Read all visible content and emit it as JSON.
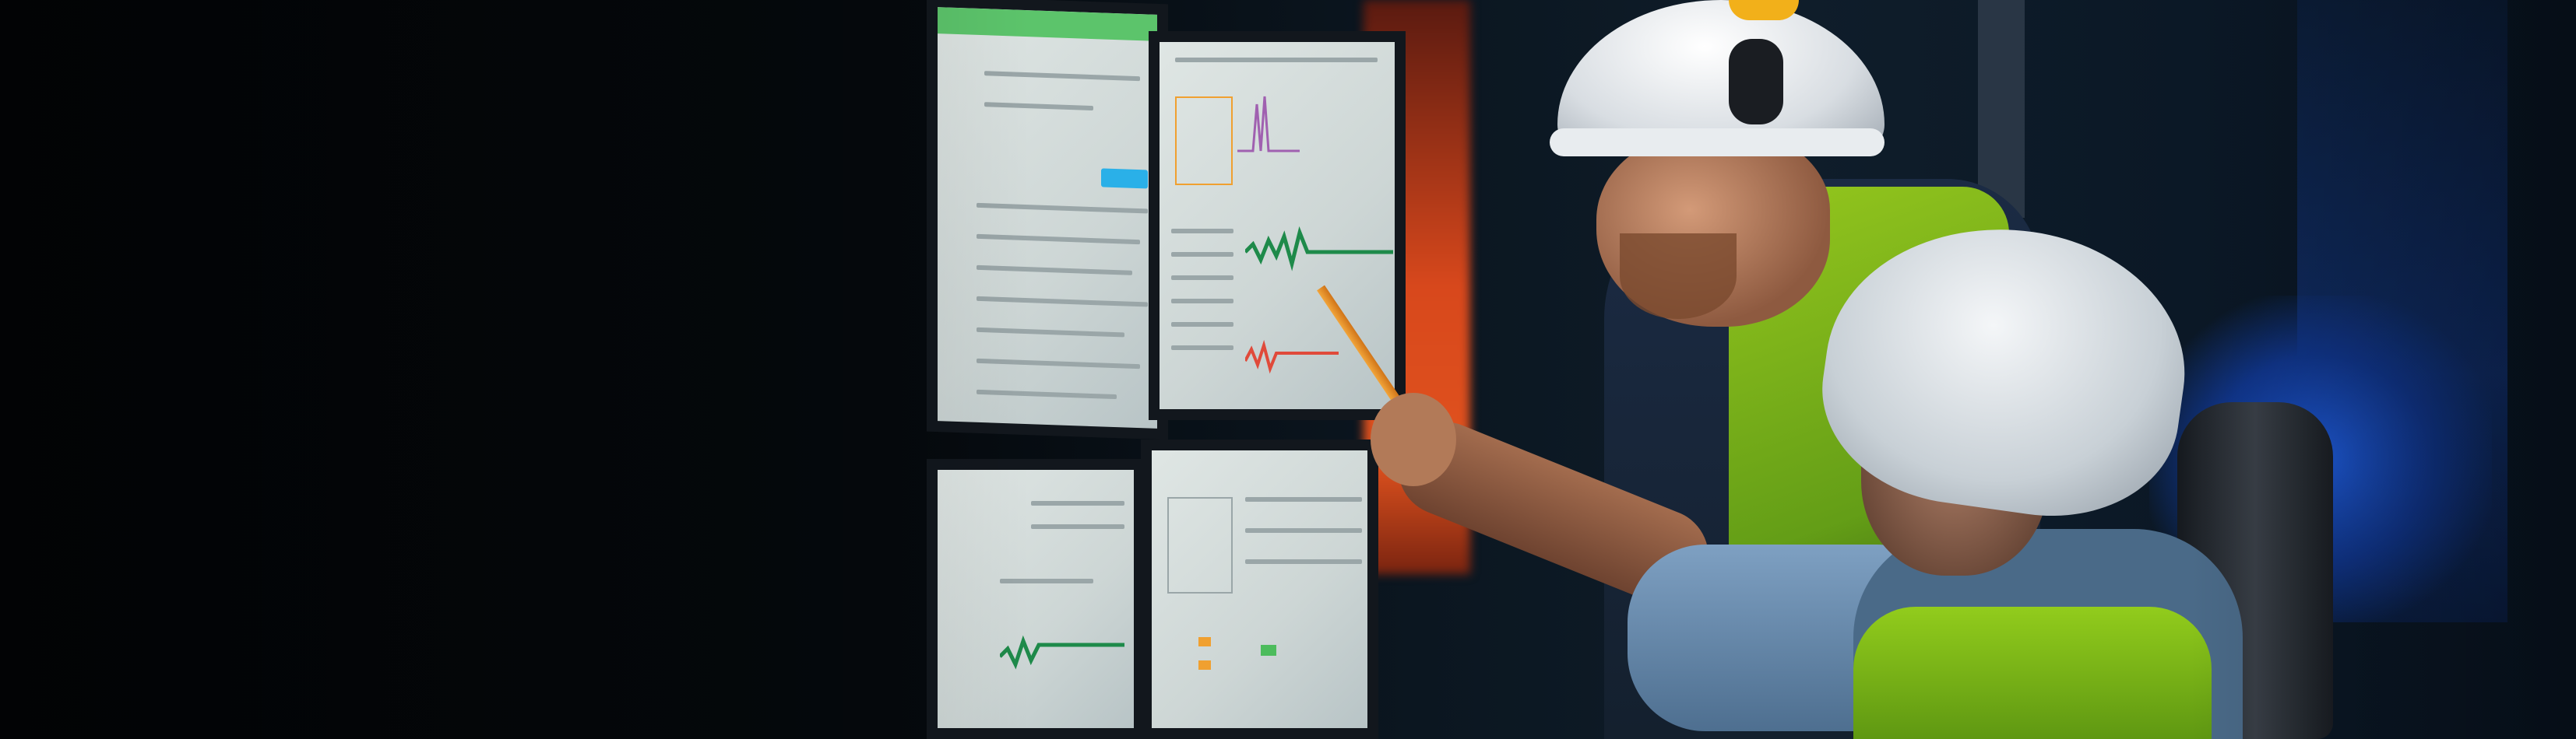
{
  "scene": {
    "description_tags": [
      "control-room",
      "monitors",
      "hard-hats"
    ],
    "colors": {
      "background": "#05080c",
      "red_light": "#d8481c",
      "blue_light": "#1e5ad8",
      "vest": "#9fd41a",
      "helmet": "#ffffff",
      "screen": "#dfe6e4",
      "chart_green": "#1e8a4a",
      "chart_red": "#e04a3a",
      "header_green": "#5cc46b",
      "badge_orange": "#f0a030",
      "button_blue": "#2ab0e8"
    }
  }
}
